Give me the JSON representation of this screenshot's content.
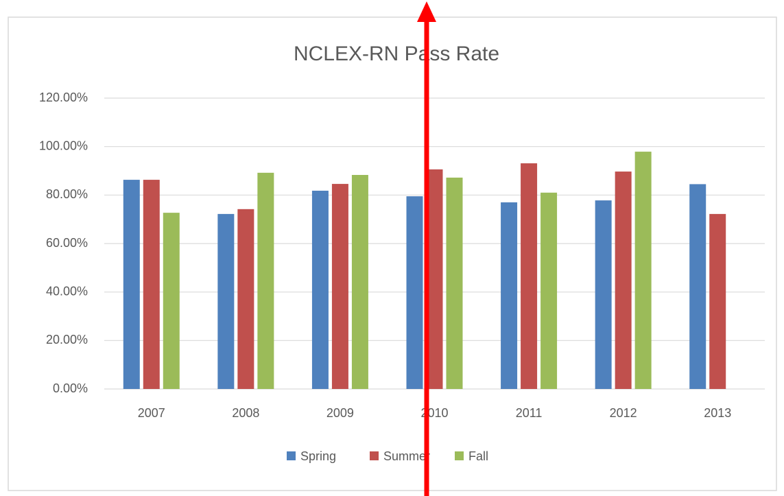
{
  "chart_data": {
    "type": "bar",
    "title": "NCLEX-RN Pass Rate",
    "categories": [
      "2007",
      "2008",
      "2009",
      "2010",
      "2011",
      "2012",
      "2013"
    ],
    "series": [
      {
        "name": "Spring",
        "color": "#4f81bd",
        "values": [
          86.3,
          72.2,
          81.8,
          79.5,
          77.0,
          77.8,
          84.5
        ]
      },
      {
        "name": "Summer",
        "color": "#c0504d",
        "values": [
          86.3,
          74.2,
          84.6,
          90.6,
          93.1,
          89.7,
          72.2
        ]
      },
      {
        "name": "Fall",
        "color": "#9bbb59",
        "values": [
          72.7,
          89.2,
          88.3,
          87.2,
          81.0,
          97.9,
          null
        ]
      }
    ],
    "ylim": [
      0,
      120
    ],
    "yticks": [
      {
        "value": 0,
        "label": "0.00%"
      },
      {
        "value": 20,
        "label": "20.00%"
      },
      {
        "value": 40,
        "label": "40.00%"
      },
      {
        "value": 60,
        "label": "60.00%"
      },
      {
        "value": 80,
        "label": "80.00%"
      },
      {
        "value": 100,
        "label": "100.00%"
      },
      {
        "value": 120,
        "label": "120.00%"
      }
    ],
    "grid": true,
    "legend": "bottom"
  }
}
